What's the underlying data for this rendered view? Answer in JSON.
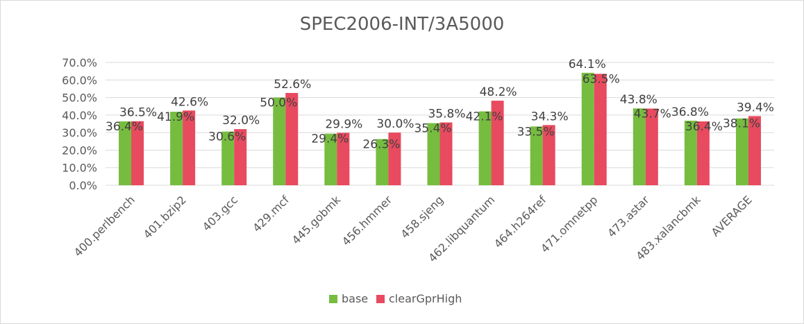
{
  "chart_data": {
    "type": "bar",
    "title": "SPEC2006-INT/3A5000",
    "xlabel": "",
    "ylabel": "",
    "ylim": [
      0,
      70
    ],
    "yticks": [
      "0.0%",
      "10.0%",
      "20.0%",
      "30.0%",
      "40.0%",
      "50.0%",
      "60.0%",
      "70.0%"
    ],
    "grid": true,
    "legend_position": "bottom",
    "categories": [
      "400.perlbench",
      "401.bzip2",
      "403.gcc",
      "429.mcf",
      "445.gobmk",
      "456.hmmer",
      "458.sjeng",
      "462.libquantum",
      "464.h264ref",
      "471.omnetpp",
      "473.astar",
      "483.xalancbmk",
      "AVERAGE"
    ],
    "series": [
      {
        "name": "base",
        "color": "#76bd3f",
        "values": [
          36.4,
          41.9,
          30.6,
          50.0,
          29.4,
          26.3,
          35.4,
          42.1,
          33.5,
          64.1,
          43.8,
          36.8,
          38.1
        ],
        "labels": [
          "36.4%",
          "41.9%",
          "30.6%",
          "50.0%",
          "29.4%",
          "26.3%",
          "35.4%",
          "42.1%",
          "33.5%",
          "64.1%",
          "43.8%",
          "36.8%",
          "38.1%"
        ]
      },
      {
        "name": "clearGprHigh",
        "color": "#e84a5f",
        "values": [
          36.5,
          42.6,
          32.0,
          52.6,
          29.9,
          30.0,
          35.8,
          48.2,
          34.3,
          63.5,
          43.7,
          36.4,
          39.4
        ],
        "labels": [
          "36.5%",
          "42.6%",
          "32.0%",
          "52.6%",
          "29.9%",
          "30.0%",
          "35.8%",
          "48.2%",
          "34.3%",
          "63.5%",
          "43.7%",
          "36.4%",
          "39.4%"
        ]
      }
    ]
  }
}
